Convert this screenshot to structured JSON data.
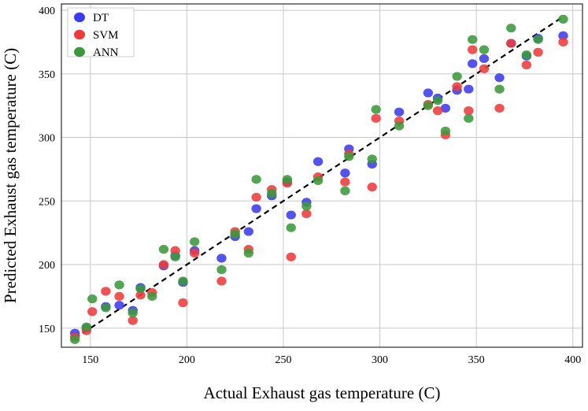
{
  "chart_data": {
    "type": "scatter",
    "title": "",
    "xlabel": "Actual Exhaust gas temperature (C)",
    "ylabel": "Predicted Exhaust gas temperature (C)",
    "xlim": [
      135,
      405
    ],
    "ylim": [
      135,
      405
    ],
    "xticks": [
      150,
      200,
      250,
      300,
      350,
      400
    ],
    "yticks": [
      150,
      200,
      250,
      300,
      350,
      400
    ],
    "grid": true,
    "legend": "top-left",
    "reference_line": {
      "style": "dashed",
      "color": "#000000",
      "from": [
        142,
        142
      ],
      "to": [
        395,
        395
      ]
    },
    "series": [
      {
        "name": "DT",
        "color": "#3b3bf0",
        "points": [
          [
            142,
            146
          ],
          [
            148,
            150
          ],
          [
            158,
            167
          ],
          [
            165,
            168
          ],
          [
            172,
            164
          ],
          [
            176,
            182
          ],
          [
            188,
            199
          ],
          [
            194,
            207
          ],
          [
            198,
            186
          ],
          [
            204,
            211
          ],
          [
            218,
            205
          ],
          [
            225,
            222
          ],
          [
            232,
            226
          ],
          [
            236,
            244
          ],
          [
            244,
            254
          ],
          [
            252,
            265
          ],
          [
            254,
            239
          ],
          [
            262,
            249
          ],
          [
            268,
            281
          ],
          [
            282,
            272
          ],
          [
            284,
            291
          ],
          [
            296,
            279
          ],
          [
            310,
            320
          ],
          [
            325,
            335
          ],
          [
            330,
            331
          ],
          [
            334,
            323
          ],
          [
            340,
            337
          ],
          [
            346,
            338
          ],
          [
            348,
            358
          ],
          [
            354,
            362
          ],
          [
            362,
            347
          ],
          [
            368,
            374
          ],
          [
            376,
            364
          ],
          [
            382,
            378
          ],
          [
            395,
            380
          ]
        ]
      },
      {
        "name": "SVM",
        "color": "#f03a3a",
        "points": [
          [
            142,
            143
          ],
          [
            148,
            148
          ],
          [
            151,
            163
          ],
          [
            158,
            179
          ],
          [
            165,
            175
          ],
          [
            172,
            156
          ],
          [
            176,
            176
          ],
          [
            182,
            178
          ],
          [
            188,
            200
          ],
          [
            194,
            211
          ],
          [
            198,
            170
          ],
          [
            204,
            209
          ],
          [
            218,
            187
          ],
          [
            225,
            226
          ],
          [
            232,
            212
          ],
          [
            236,
            253
          ],
          [
            244,
            259
          ],
          [
            252,
            264
          ],
          [
            254,
            206
          ],
          [
            262,
            240
          ],
          [
            268,
            269
          ],
          [
            282,
            265
          ],
          [
            284,
            287
          ],
          [
            296,
            261
          ],
          [
            298,
            315
          ],
          [
            310,
            313
          ],
          [
            325,
            326
          ],
          [
            330,
            321
          ],
          [
            334,
            302
          ],
          [
            340,
            340
          ],
          [
            346,
            321
          ],
          [
            348,
            369
          ],
          [
            354,
            354
          ],
          [
            362,
            323
          ],
          [
            368,
            374
          ],
          [
            376,
            357
          ],
          [
            382,
            367
          ],
          [
            395,
            375
          ]
        ]
      },
      {
        "name": "ANN",
        "color": "#3a9a3a",
        "points": [
          [
            142,
            141
          ],
          [
            148,
            151
          ],
          [
            151,
            173
          ],
          [
            158,
            166
          ],
          [
            165,
            184
          ],
          [
            172,
            162
          ],
          [
            176,
            181
          ],
          [
            182,
            175
          ],
          [
            188,
            212
          ],
          [
            194,
            206
          ],
          [
            198,
            187
          ],
          [
            204,
            218
          ],
          [
            218,
            196
          ],
          [
            225,
            224
          ],
          [
            232,
            209
          ],
          [
            236,
            267
          ],
          [
            244,
            256
          ],
          [
            252,
            267
          ],
          [
            254,
            229
          ],
          [
            262,
            246
          ],
          [
            268,
            266
          ],
          [
            282,
            258
          ],
          [
            284,
            285
          ],
          [
            296,
            283
          ],
          [
            298,
            322
          ],
          [
            310,
            309
          ],
          [
            325,
            325
          ],
          [
            330,
            329
          ],
          [
            334,
            305
          ],
          [
            340,
            348
          ],
          [
            346,
            315
          ],
          [
            348,
            377
          ],
          [
            354,
            369
          ],
          [
            362,
            338
          ],
          [
            368,
            386
          ],
          [
            376,
            365
          ],
          [
            382,
            377
          ],
          [
            395,
            393
          ]
        ]
      }
    ]
  }
}
